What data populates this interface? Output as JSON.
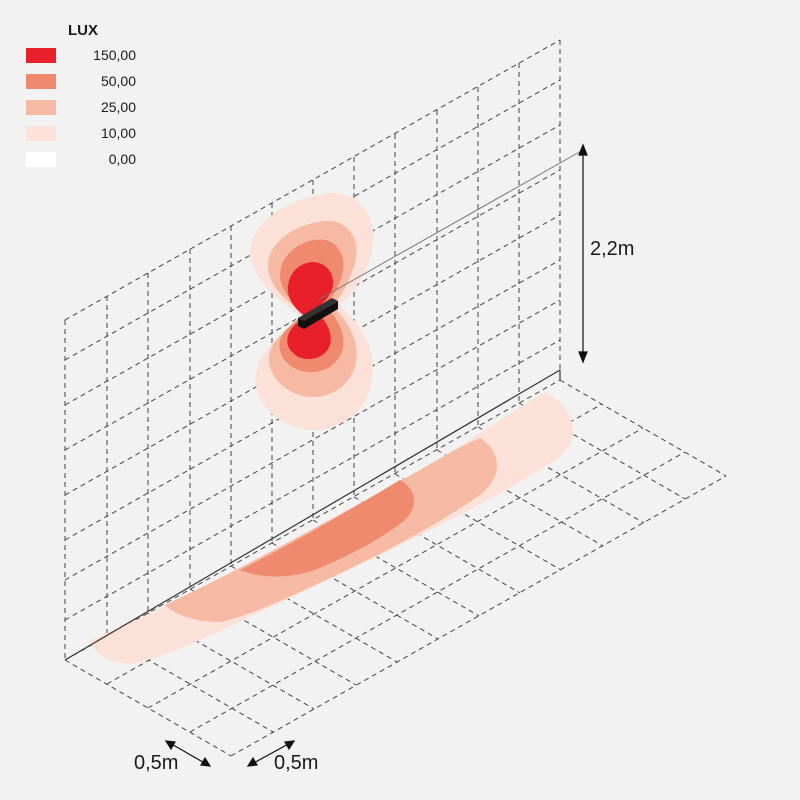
{
  "legend": {
    "title": "LUX",
    "entries": [
      {
        "label": "150,00",
        "color": "#e8202a"
      },
      {
        "label": "50,00",
        "color": "#ef8a6f"
      },
      {
        "label": "25,00",
        "color": "#f6baa4"
      },
      {
        "label": "10,00",
        "color": "#fbe1d7"
      },
      {
        "label": "0,00",
        "color": "#ffffff"
      }
    ]
  },
  "dimensions": {
    "height": "2,2m",
    "grid_x": "0,5m",
    "grid_y": "0,5m"
  },
  "fixture": {
    "color": "#111111"
  }
}
